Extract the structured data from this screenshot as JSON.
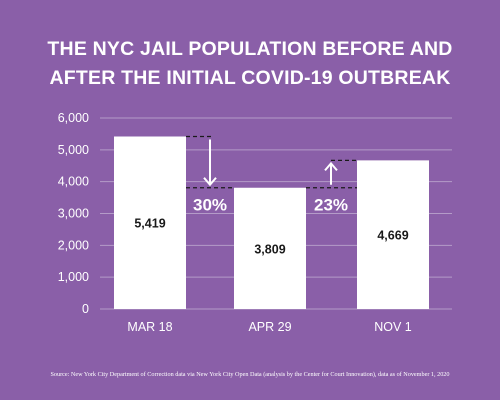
{
  "chart_data": {
    "type": "bar",
    "title_lines": [
      "THE NYC JAIL POPULATION BEFORE AND",
      "AFTER THE INITIAL COVID-19 OUTBREAK"
    ],
    "categories": [
      "MAR 18",
      "APR 29",
      "NOV 1"
    ],
    "values": [
      5419,
      3809,
      4669
    ],
    "value_labels": [
      "5,419",
      "3,809",
      "4,669"
    ],
    "ylim": [
      0,
      6000
    ],
    "yticks": [
      0,
      1000,
      2000,
      3000,
      4000,
      5000,
      6000
    ],
    "ytick_labels": [
      "0",
      "1,000",
      "2,000",
      "3,000",
      "4,000",
      "5,000",
      "6,000"
    ],
    "grid": true,
    "annotations": [
      {
        "text": "30%",
        "direction": "down",
        "from_value": 5419,
        "to_value": 3809
      },
      {
        "text": "23%",
        "direction": "up",
        "from_value": 3809,
        "to_value": 4669
      }
    ]
  },
  "source": "Source: New York City Department of Correction data via New York City Open Data (analysis by the Center for Court Innovation), data as of  November 1, 2020",
  "colors": {
    "background": "#8a5fa8",
    "bar": "#ffffff",
    "grid": "#b49bc8",
    "text": "#ffffff",
    "value_label": "#1a1a1a"
  }
}
